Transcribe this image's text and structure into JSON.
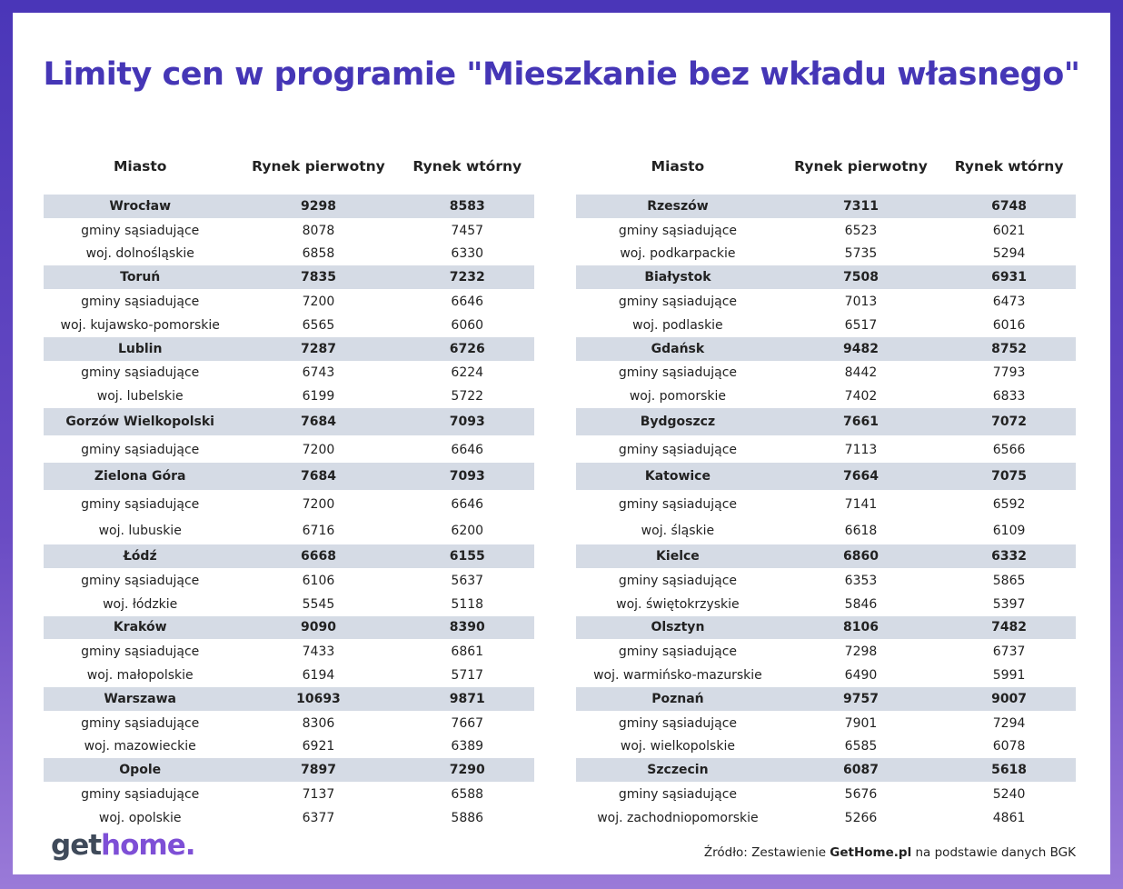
{
  "title": "Limity cen w programie \"Mieszkanie bez wkładu własnego\"",
  "tables": [
    {
      "header": [
        "Miasto",
        "Rynek pierwotny",
        "Rynek wtórny"
      ],
      "cities": [
        {
          "name": "Wrocław",
          "primary": 9298,
          "secondary": 8583,
          "subrows": [
            [
              "gminy sąsiadujące",
              8078,
              7457
            ],
            [
              "woj. dolnośląskie",
              6858,
              6330
            ]
          ]
        },
        {
          "name": "Toruń",
          "primary": 7835,
          "secondary": 7232,
          "subrows": [
            [
              "gminy sąsiadujące",
              7200,
              6646
            ],
            [
              "woj. kujawsko-pomorskie",
              6565,
              6060
            ]
          ]
        },
        {
          "name": "Lublin",
          "primary": 7287,
          "secondary": 6726,
          "subrows": [
            [
              "gminy sąsiadujące",
              6743,
              6224
            ],
            [
              "woj. lubelskie",
              6199,
              5722
            ]
          ]
        },
        {
          "name": "Gorzów Wielkopolski",
          "primary": 7684,
          "secondary": 7093,
          "subrows": [
            [
              "gminy sąsiadujące",
              7200,
              6646
            ]
          ]
        },
        {
          "name": "Zielona Góra",
          "primary": 7684,
          "secondary": 7093,
          "subrows": [
            [
              "gminy sąsiadujące",
              7200,
              6646
            ],
            [
              "woj. lubuskie",
              6716,
              6200
            ]
          ]
        },
        {
          "name": "Łódź",
          "primary": 6668,
          "secondary": 6155,
          "subrows": [
            [
              "gminy sąsiadujące",
              6106,
              5637
            ],
            [
              "woj. łódzkie",
              5545,
              5118
            ]
          ]
        },
        {
          "name": "Kraków",
          "primary": 9090,
          "secondary": 8390,
          "subrows": [
            [
              "gminy sąsiadujące",
              7433,
              6861
            ],
            [
              "woj. małopolskie",
              6194,
              5717
            ]
          ]
        },
        {
          "name": "Warszawa",
          "primary": 10693,
          "secondary": 9871,
          "subrows": [
            [
              "gminy sąsiadujące",
              8306,
              7667
            ],
            [
              "woj. mazowieckie",
              6921,
              6389
            ]
          ]
        },
        {
          "name": "Opole",
          "primary": 7897,
          "secondary": 7290,
          "subrows": [
            [
              "gminy sąsiadujące",
              7137,
              6588
            ],
            [
              "woj. opolskie",
              6377,
              5886
            ]
          ]
        }
      ]
    },
    {
      "header": [
        "Miasto",
        "Rynek pierwotny",
        "Rynek wtórny"
      ],
      "cities": [
        {
          "name": "Rzeszów",
          "primary": 7311,
          "secondary": 6748,
          "subrows": [
            [
              "gminy sąsiadujące",
              6523,
              6021
            ],
            [
              "woj. podkarpackie",
              5735,
              5294
            ]
          ]
        },
        {
          "name": "Białystok",
          "primary": 7508,
          "secondary": 6931,
          "subrows": [
            [
              "gminy sąsiadujące",
              7013,
              6473
            ],
            [
              "woj. podlaskie",
              6517,
              6016
            ]
          ]
        },
        {
          "name": "Gdańsk",
          "primary": 9482,
          "secondary": 8752,
          "subrows": [
            [
              "gminy sąsiadujące",
              8442,
              7793
            ],
            [
              "woj. pomorskie",
              7402,
              6833
            ]
          ]
        },
        {
          "name": "Bydgoszcz",
          "primary": 7661,
          "secondary": 7072,
          "subrows": [
            [
              "gminy sąsiadujące",
              7113,
              6566
            ]
          ]
        },
        {
          "name": "Katowice",
          "primary": 7664,
          "secondary": 7075,
          "subrows": [
            [
              "gminy sąsiadujące",
              7141,
              6592
            ],
            [
              "woj. śląskie",
              6618,
              6109
            ]
          ]
        },
        {
          "name": "Kielce",
          "primary": 6860,
          "secondary": 6332,
          "subrows": [
            [
              "gminy sąsiadujące",
              6353,
              5865
            ],
            [
              "woj. świętokrzyskie",
              5846,
              5397
            ]
          ]
        },
        {
          "name": "Olsztyn",
          "primary": 8106,
          "secondary": 7482,
          "subrows": [
            [
              "gminy sąsiadujące",
              7298,
              6737
            ],
            [
              "woj. warmińsko-mazurskie",
              6490,
              5991
            ]
          ]
        },
        {
          "name": "Poznań",
          "primary": 9757,
          "secondary": 9007,
          "subrows": [
            [
              "gminy sąsiadujące",
              7901,
              7294
            ],
            [
              "woj. wielkopolskie",
              6585,
              6078
            ]
          ]
        },
        {
          "name": "Szczecin",
          "primary": 6087,
          "secondary": 5618,
          "subrows": [
            [
              "gminy sąsiadujące",
              5676,
              5240
            ],
            [
              "woj. zachodniopomorskie",
              5266,
              4861
            ]
          ]
        }
      ]
    }
  ],
  "footer": {
    "logo": [
      "get",
      "home."
    ],
    "source": [
      "Źródło: Zestawienie ",
      "GetHome.pl",
      " na podstawie danych BGK"
    ]
  }
}
